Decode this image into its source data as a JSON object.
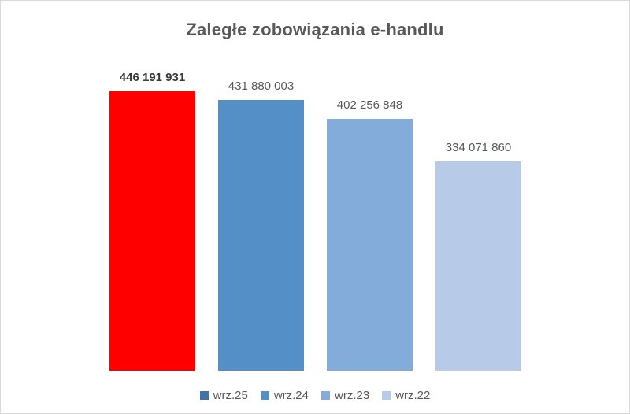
{
  "chart_data": {
    "type": "bar",
    "title": "Zaległe zobowiązania e-handlu",
    "categories": [
      "wrz.25",
      "wrz.24",
      "wrz.23",
      "wrz.22"
    ],
    "values": [
      446191931,
      431880003,
      402256848,
      334071860
    ],
    "value_labels": [
      "446 191 931",
      "431 880 003",
      "402 256 848",
      "334 071 860"
    ],
    "bar_colors": [
      "#FF0000",
      "#548FC7",
      "#83ACDB",
      "#B7CBE9"
    ],
    "legend_colors": [
      "#3E74A9",
      "#548FC7",
      "#83ACDB",
      "#B7CBE9"
    ],
    "highlight_index": 0,
    "xlabel": "",
    "ylabel": "",
    "ylim": [
      0,
      446191931
    ],
    "grid": false,
    "axes_visible": false,
    "legend_position": "bottom",
    "title_color": "#595959",
    "label_color": "#595959",
    "highlight_label_color": "#3B3B3B",
    "background_color": "#FFFFFF",
    "border_color": "#D9D9D9"
  }
}
